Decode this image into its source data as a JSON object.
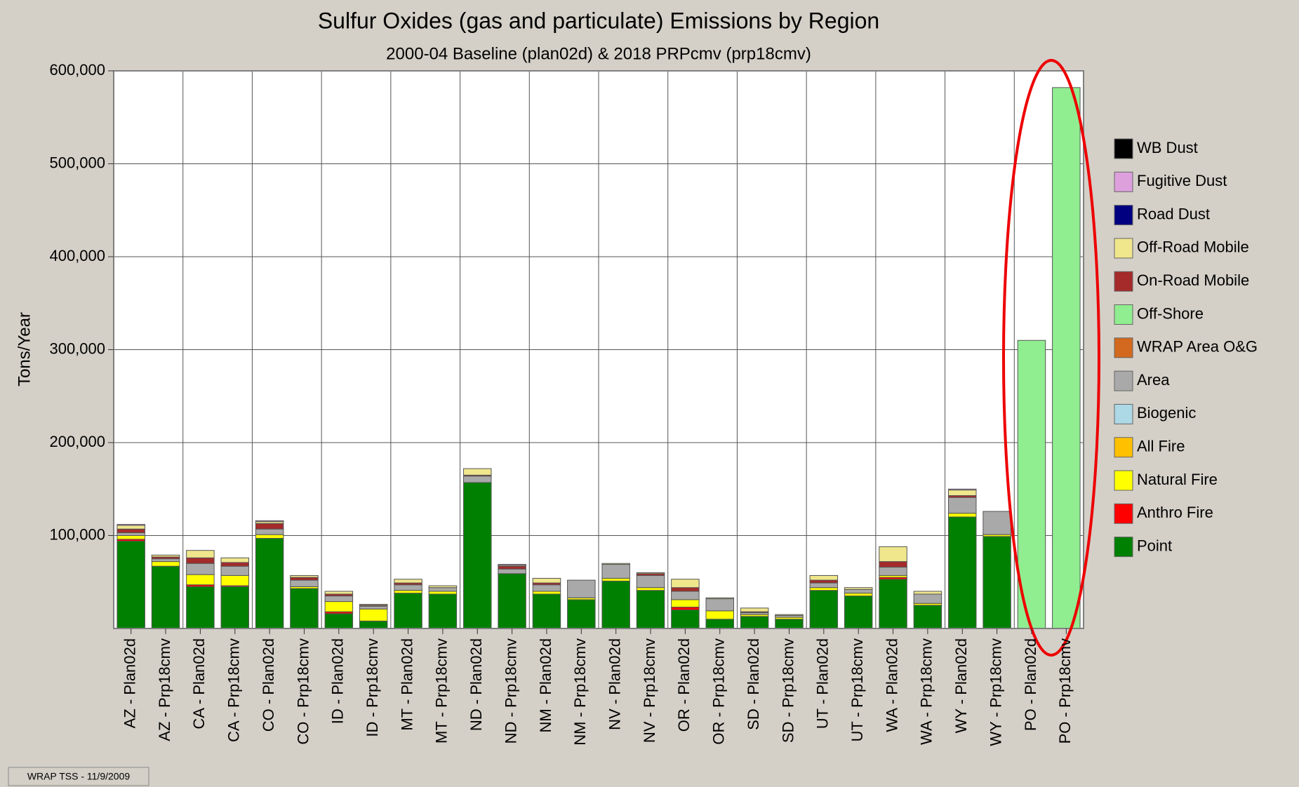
{
  "chart_data": {
    "type": "bar",
    "stacked": true,
    "title": "Sulfur Oxides (gas and particulate) Emissions by Region",
    "subtitle": "2000-04 Baseline (plan02d) & 2018 PRPcmv (prp18cmv)",
    "y_label": "Tons/Year",
    "footer": "WRAP TSS - 11/9/2009",
    "categories": [
      "AZ - Plan02d",
      "AZ - Prp18cmv",
      "CA - Plan02d",
      "CA - Prp18cmv",
      "CO - Plan02d",
      "CO - Prp18cmv",
      "ID - Plan02d",
      "ID - Prp18cmv",
      "MT - Plan02d",
      "MT - Prp18cmv",
      "ND - Plan02d",
      "ND - Prp18cmv",
      "NM - Plan02d",
      "NM - Prp18cmv",
      "NV - Plan02d",
      "NV - Prp18cmv",
      "OR - Plan02d",
      "OR - Prp18cmv",
      "SD - Plan02d",
      "SD - Prp18cmv",
      "UT - Plan02d",
      "UT - Prp18cmv",
      "WA - Plan02d",
      "WA - Prp18cmv",
      "WY - Plan02d",
      "WY - Prp18cmv",
      "PO - Plan02d",
      "PO - Prp18cmv"
    ],
    "series": [
      {
        "name": "WB Dust",
        "color": "#000000",
        "values": [
          0,
          0,
          0,
          0,
          0,
          0,
          0,
          0,
          0,
          0,
          0,
          0,
          0,
          0,
          0,
          0,
          0,
          0,
          0,
          0,
          0,
          0,
          0,
          0,
          0,
          0,
          0,
          0
        ]
      },
      {
        "name": "Fugitive Dust",
        "color": "#dda0dd",
        "values": [
          1000,
          0,
          0,
          0,
          1000,
          0,
          0,
          0,
          0,
          0,
          0,
          1000,
          0,
          0,
          0,
          0,
          0,
          0,
          0,
          0,
          0,
          0,
          0,
          0,
          1000,
          0,
          0,
          0
        ]
      },
      {
        "name": "Road Dust",
        "color": "#000080",
        "values": [
          0,
          0,
          0,
          0,
          0,
          0,
          0,
          0,
          0,
          0,
          0,
          0,
          0,
          0,
          0,
          0,
          0,
          0,
          0,
          0,
          0,
          0,
          0,
          0,
          0,
          0,
          0,
          0
        ]
      },
      {
        "name": "Off-Road Mobile",
        "color": "#f0e68c",
        "values": [
          4000,
          2000,
          8000,
          5000,
          2000,
          2000,
          3000,
          1000,
          4000,
          2000,
          7000,
          1000,
          5000,
          0,
          1000,
          1000,
          9000,
          1000,
          4000,
          1000,
          5000,
          2000,
          16000,
          3000,
          6000,
          0,
          0,
          0
        ]
      },
      {
        "name": "On-Road Mobile",
        "color": "#a52a2a",
        "values": [
          4000,
          2000,
          6000,
          4000,
          6000,
          3000,
          2000,
          1000,
          2000,
          0,
          1000,
          3000,
          2000,
          0,
          0,
          2000,
          4000,
          0,
          1000,
          0,
          3000,
          0,
          6000,
          0,
          2000,
          0,
          0,
          0
        ]
      },
      {
        "name": "Off-Shore",
        "color": "#90ee90",
        "values": [
          0,
          0,
          0,
          0,
          0,
          0,
          0,
          0,
          0,
          0,
          0,
          0,
          0,
          0,
          0,
          0,
          0,
          0,
          0,
          0,
          0,
          0,
          0,
          0,
          0,
          0,
          310000,
          582000
        ]
      },
      {
        "name": "WRAP Area O&G",
        "color": "#d2691e",
        "values": [
          0,
          0,
          0,
          0,
          0,
          0,
          0,
          0,
          0,
          0,
          0,
          0,
          0,
          0,
          0,
          0,
          0,
          0,
          0,
          0,
          0,
          0,
          0,
          0,
          0,
          0,
          0,
          0
        ]
      },
      {
        "name": "Area",
        "color": "#a9a9a9",
        "values": [
          3000,
          3000,
          12000,
          10000,
          6000,
          7000,
          6000,
          3000,
          6000,
          4000,
          7000,
          5000,
          7000,
          19000,
          15000,
          13000,
          9000,
          13000,
          2000,
          2000,
          5000,
          4000,
          9000,
          10000,
          17000,
          25000,
          0,
          0
        ]
      },
      {
        "name": "Biogenic",
        "color": "#add8e6",
        "values": [
          0,
          0,
          0,
          0,
          0,
          0,
          0,
          0,
          0,
          0,
          0,
          0,
          0,
          0,
          0,
          0,
          0,
          0,
          0,
          0,
          0,
          0,
          0,
          0,
          0,
          0,
          0,
          0
        ]
      },
      {
        "name": "All Fire",
        "color": "#ffc000",
        "values": [
          0,
          0,
          0,
          0,
          0,
          0,
          0,
          0,
          0,
          0,
          0,
          0,
          0,
          0,
          0,
          0,
          0,
          0,
          0,
          0,
          0,
          0,
          0,
          0,
          0,
          0,
          0,
          0
        ]
      },
      {
        "name": "Natural Fire",
        "color": "#ffff00",
        "values": [
          4000,
          5000,
          11000,
          11000,
          4000,
          2000,
          11000,
          13000,
          3000,
          3000,
          0,
          0,
          3000,
          2000,
          3000,
          3000,
          8000,
          9000,
          2000,
          2000,
          3000,
          3000,
          2000,
          2000,
          4000,
          2000,
          0,
          0
        ]
      },
      {
        "name": "Anthro Fire",
        "color": "#ff0000",
        "values": [
          2000,
          0,
          2000,
          1000,
          0,
          0,
          2000,
          0,
          0,
          0,
          0,
          0,
          0,
          0,
          0,
          0,
          3000,
          0,
          0,
          0,
          0,
          0,
          2000,
          0,
          0,
          0,
          0,
          0
        ]
      },
      {
        "name": "Point",
        "color": "#008000",
        "values": [
          94000,
          67000,
          45000,
          45000,
          97000,
          43000,
          16000,
          8000,
          38000,
          37000,
          157000,
          59000,
          37000,
          31000,
          51000,
          41000,
          20000,
          10000,
          13000,
          10000,
          41000,
          35000,
          53000,
          25000,
          120000,
          99000,
          0,
          0
        ]
      }
    ],
    "ylim": [
      0,
      600000
    ],
    "yticks": [
      {
        "value": 100000,
        "label": "100,000"
      },
      {
        "value": 200000,
        "label": "200,000"
      },
      {
        "value": 300000,
        "label": "300,000"
      },
      {
        "value": 400000,
        "label": "400,000"
      },
      {
        "value": 500000,
        "label": "500,000"
      },
      {
        "value": 600000,
        "label": "600,000"
      }
    ],
    "grid": true,
    "legend": "right"
  }
}
